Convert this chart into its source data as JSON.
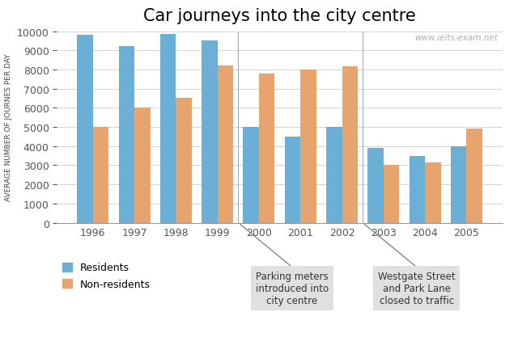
{
  "title": "Car journeys into the city centre",
  "ylabel": "AVERAGE NUMBER OF JOURNES PER DAY",
  "years": [
    "1996",
    "1997",
    "1998",
    "1999",
    "2000",
    "2001",
    "2002",
    "2003",
    "2004",
    "2005"
  ],
  "residents": [
    9800,
    9200,
    9850,
    9500,
    5000,
    4500,
    5000,
    3900,
    3500,
    4000
  ],
  "non_residents": [
    5000,
    6000,
    6500,
    8200,
    7800,
    8000,
    8150,
    3000,
    3150,
    4900
  ],
  "bar_color_residents": "#6baed6",
  "bar_color_non_residents": "#e8a46e",
  "ylim": [
    0,
    10000
  ],
  "yticks": [
    0,
    1000,
    2000,
    3000,
    4000,
    5000,
    6000,
    7000,
    8000,
    9000,
    10000
  ],
  "legend_residents": "Residents",
  "legend_non_residents": "Non-residents",
  "annotation1_text": "Parking meters\nintroduced into\ncity centre",
  "annotation2_text": "Westgate Street\nand Park Lane\nclosed to traffic",
  "watermark": "www.ielts-exam.net",
  "background_color": "#ffffff",
  "annotation_box_color": "#e0e0e0"
}
